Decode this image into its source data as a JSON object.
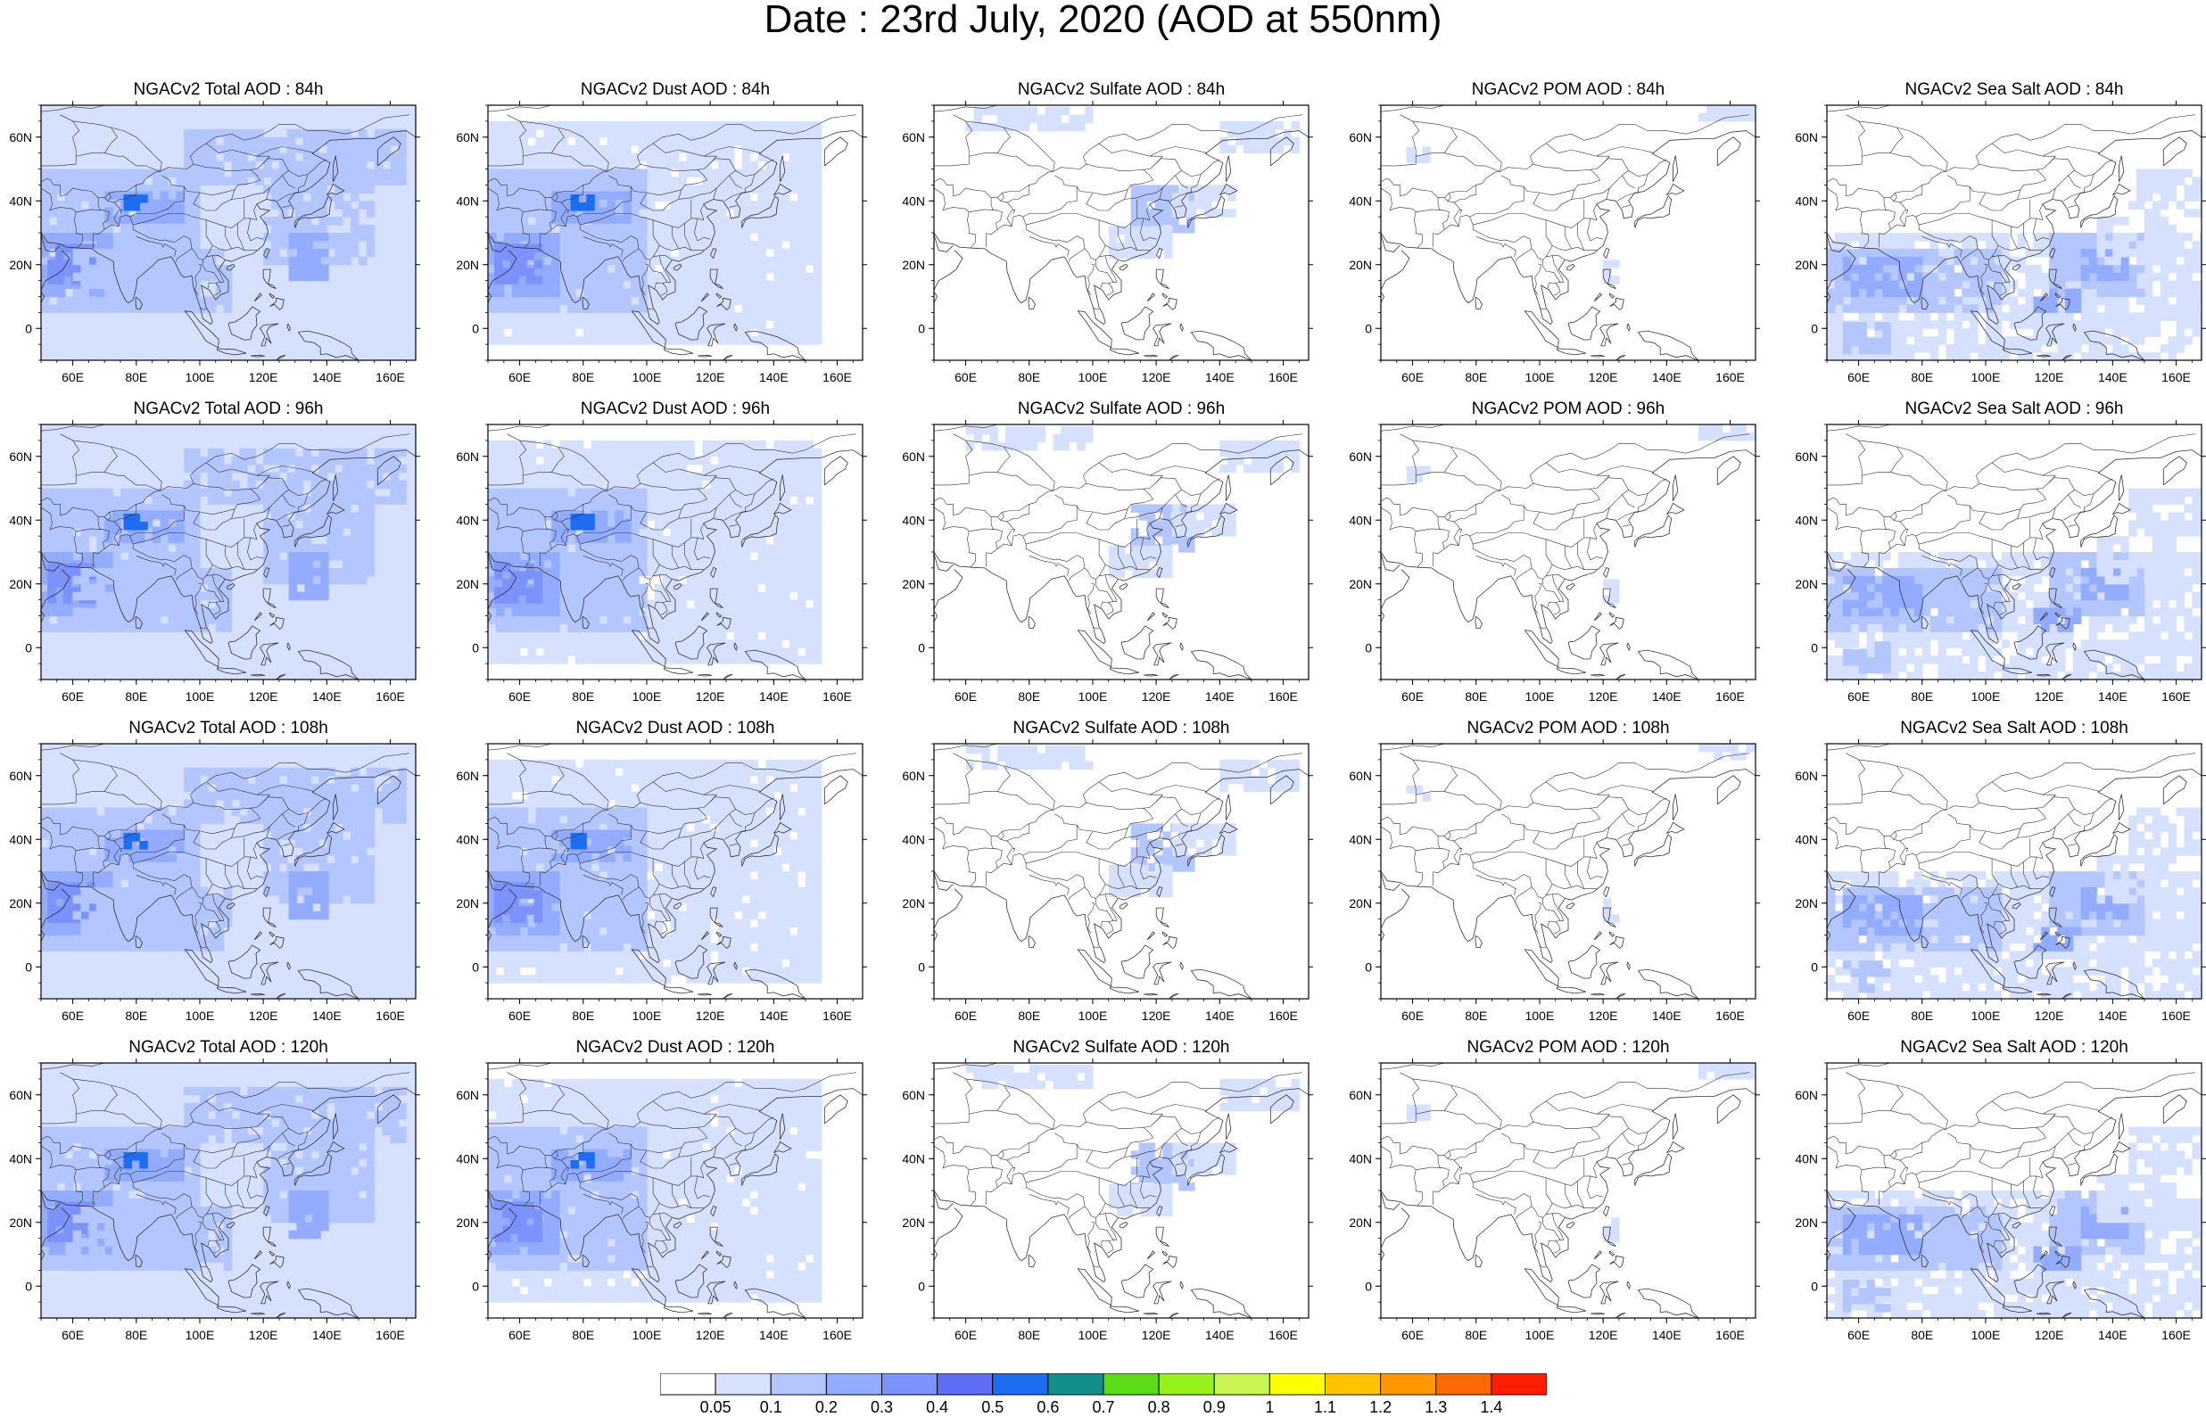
{
  "title": "Date : 23rd July, 2020 (AOD at 550nm)",
  "panels": [
    {
      "title": "NGACv2 Total AOD : 84h",
      "species": "total",
      "hour": 84
    },
    {
      "title": "NGACv2 Dust AOD : 84h",
      "species": "dust",
      "hour": 84
    },
    {
      "title": "NGACv2 Sulfate AOD : 84h",
      "species": "sulfate",
      "hour": 84
    },
    {
      "title": "NGACv2 POM AOD : 84h",
      "species": "pom",
      "hour": 84
    },
    {
      "title": "NGACv2 Sea Salt AOD : 84h",
      "species": "seasalt",
      "hour": 84
    },
    {
      "title": "NGACv2 Total AOD : 96h",
      "species": "total",
      "hour": 96
    },
    {
      "title": "NGACv2 Dust AOD : 96h",
      "species": "dust",
      "hour": 96
    },
    {
      "title": "NGACv2 Sulfate AOD : 96h",
      "species": "sulfate",
      "hour": 96
    },
    {
      "title": "NGACv2 POM AOD : 96h",
      "species": "pom",
      "hour": 96
    },
    {
      "title": "NGACv2 Sea Salt AOD : 96h",
      "species": "seasalt",
      "hour": 96
    },
    {
      "title": "NGACv2 Total AOD : 108h",
      "species": "total",
      "hour": 108
    },
    {
      "title": "NGACv2 Dust AOD : 108h",
      "species": "dust",
      "hour": 108
    },
    {
      "title": "NGACv2 Sulfate AOD : 108h",
      "species": "sulfate",
      "hour": 108
    },
    {
      "title": "NGACv2 POM AOD : 108h",
      "species": "pom",
      "hour": 108
    },
    {
      "title": "NGACv2 Sea Salt AOD : 108h",
      "species": "seasalt",
      "hour": 108
    },
    {
      "title": "NGACv2 Total AOD : 120h",
      "species": "total",
      "hour": 120
    },
    {
      "title": "NGACv2 Dust AOD : 120h",
      "species": "dust",
      "hour": 120
    },
    {
      "title": "NGACv2 Sulfate AOD : 120h",
      "species": "sulfate",
      "hour": 120
    },
    {
      "title": "NGACv2 POM AOD : 120h",
      "species": "pom",
      "hour": 120
    },
    {
      "title": "NGACv2 Sea Salt  AOD : 120h",
      "species": "seasalt",
      "hour": 120
    }
  ],
  "map_extent": {
    "lon": [
      50,
      168
    ],
    "lat": [
      -10,
      70
    ]
  },
  "lon_ticks": [
    "60E",
    "80E",
    "100E",
    "120E",
    "140E",
    "160E"
  ],
  "lon_values": [
    60,
    80,
    100,
    120,
    140,
    160
  ],
  "lat_ticks": [
    "60N",
    "40N",
    "20N",
    "0"
  ],
  "lat_values": [
    60,
    40,
    20,
    0
  ],
  "colorbar": {
    "labels": [
      "0.05",
      "0.1",
      "0.2",
      "0.3",
      "0.4",
      "0.5",
      "0.6",
      "0.7",
      "0.8",
      "0.9",
      "1",
      "1.1",
      "1.2",
      "1.3",
      "1.4"
    ],
    "colors": [
      "#ffffff",
      "#d6e0ff",
      "#b4c6ff",
      "#93acff",
      "#7b92ff",
      "#5f6ef5",
      "#1e6cf0",
      "#138f8a",
      "#5bdc14",
      "#96f01a",
      "#c8f550",
      "#ffff00",
      "#ffc400",
      "#ff9800",
      "#ff6a00",
      "#ff1e00"
    ]
  }
}
